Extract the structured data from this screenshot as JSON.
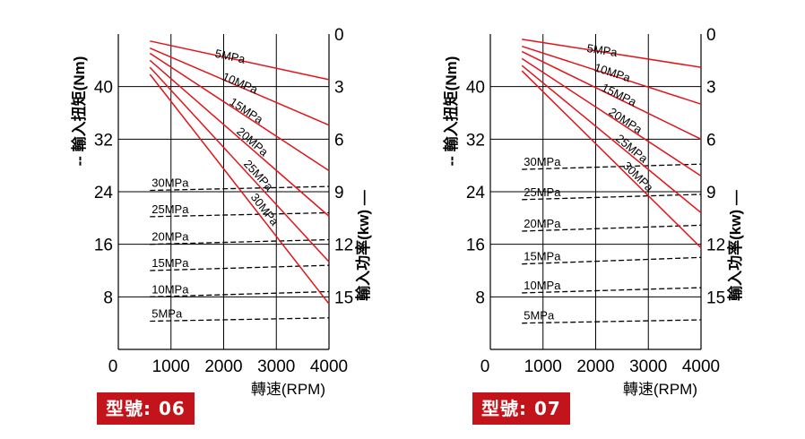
{
  "chart_data": [
    {
      "type": "line",
      "model_label": "型號: 06",
      "xlabel": "轉速(RPM)",
      "ylabel_left": "-- 輸入扭矩(Nm)",
      "ylabel_right": "輸入功率(kw) —",
      "xticks": [
        "0",
        "1000",
        "2000",
        "3000",
        "4000"
      ],
      "yticks_left": [
        "8",
        "16",
        "24",
        "32",
        "40"
      ],
      "yticks_right": [
        "0",
        "3",
        "6",
        "9",
        "12",
        "15"
      ],
      "xlim": [
        0,
        4000
      ],
      "ylim_left": [
        0,
        48
      ],
      "ylim_right": [
        0,
        18
      ],
      "power_series": [
        {
          "name": "5MPa",
          "x": [
            600,
            4000
          ],
          "kw": [
            0.4,
            2.6
          ]
        },
        {
          "name": "10MPa",
          "x": [
            600,
            4000
          ],
          "kw": [
            0.8,
            5.2
          ]
        },
        {
          "name": "15MPa",
          "x": [
            600,
            4000
          ],
          "kw": [
            1.1,
            7.8
          ]
        },
        {
          "name": "20MPa",
          "x": [
            600,
            4000
          ],
          "kw": [
            1.5,
            10.4
          ]
        },
        {
          "name": "25MPa",
          "x": [
            600,
            4000
          ],
          "kw": [
            1.9,
            13.0
          ]
        },
        {
          "name": "30MPa",
          "x": [
            600,
            4000
          ],
          "kw": [
            2.3,
            15.4
          ]
        }
      ],
      "torque_series": [
        {
          "name": "5MPa",
          "x": [
            600,
            4000
          ],
          "nm": [
            4.3,
            4.8
          ]
        },
        {
          "name": "10MPa",
          "x": [
            600,
            4000
          ],
          "nm": [
            8.0,
            8.8
          ]
        },
        {
          "name": "15MPa",
          "x": [
            600,
            4000
          ],
          "nm": [
            12.0,
            12.8
          ]
        },
        {
          "name": "20MPa",
          "x": [
            600,
            4000
          ],
          "nm": [
            16.0,
            16.7
          ]
        },
        {
          "name": "25MPa",
          "x": [
            600,
            4000
          ],
          "nm": [
            20.2,
            20.8
          ]
        },
        {
          "name": "30MPa",
          "x": [
            600,
            4000
          ],
          "nm": [
            24.2,
            24.8
          ]
        }
      ]
    },
    {
      "type": "line",
      "model_label": "型號: 07",
      "xlabel": "轉速(RPM)",
      "ylabel_left": "-- 輸入扭矩(Nm)",
      "ylabel_right": "輸入功率(kw) —",
      "xticks": [
        "0",
        "1000",
        "2000",
        "3000",
        "4000"
      ],
      "yticks_left": [
        "8",
        "16",
        "24",
        "32",
        "40"
      ],
      "yticks_right": [
        "0",
        "3",
        "6",
        "9",
        "12",
        "15"
      ],
      "xlim": [
        0,
        4000
      ],
      "ylim_left": [
        0,
        48
      ],
      "ylim_right": [
        0,
        18
      ],
      "power_series": [
        {
          "name": "5MPa",
          "x": [
            600,
            4000
          ],
          "kw": [
            0.3,
            1.9
          ]
        },
        {
          "name": "10MPa",
          "x": [
            600,
            4000
          ],
          "kw": [
            0.7,
            4.0
          ]
        },
        {
          "name": "15MPa",
          "x": [
            600,
            4000
          ],
          "kw": [
            1.0,
            6.0
          ]
        },
        {
          "name": "20MPa",
          "x": [
            600,
            4000
          ],
          "kw": [
            1.4,
            8.1
          ]
        },
        {
          "name": "25MPa",
          "x": [
            600,
            4000
          ],
          "kw": [
            1.8,
            10.2
          ]
        },
        {
          "name": "30MPa",
          "x": [
            600,
            4000
          ],
          "kw": [
            2.1,
            12.2
          ]
        }
      ],
      "torque_series": [
        {
          "name": "5MPa",
          "x": [
            600,
            4000
          ],
          "nm": [
            4.0,
            4.5
          ]
        },
        {
          "name": "10MPa",
          "x": [
            600,
            4000
          ],
          "nm": [
            8.6,
            9.4
          ]
        },
        {
          "name": "15MPa",
          "x": [
            600,
            4000
          ],
          "nm": [
            13.0,
            14.0
          ]
        },
        {
          "name": "20MPa",
          "x": [
            600,
            4000
          ],
          "nm": [
            18.0,
            18.9
          ]
        },
        {
          "name": "25MPa",
          "x": [
            600,
            4000
          ],
          "nm": [
            22.8,
            23.6
          ]
        },
        {
          "name": "30MPa",
          "x": [
            600,
            4000
          ],
          "nm": [
            27.4,
            28.2
          ]
        }
      ]
    }
  ]
}
